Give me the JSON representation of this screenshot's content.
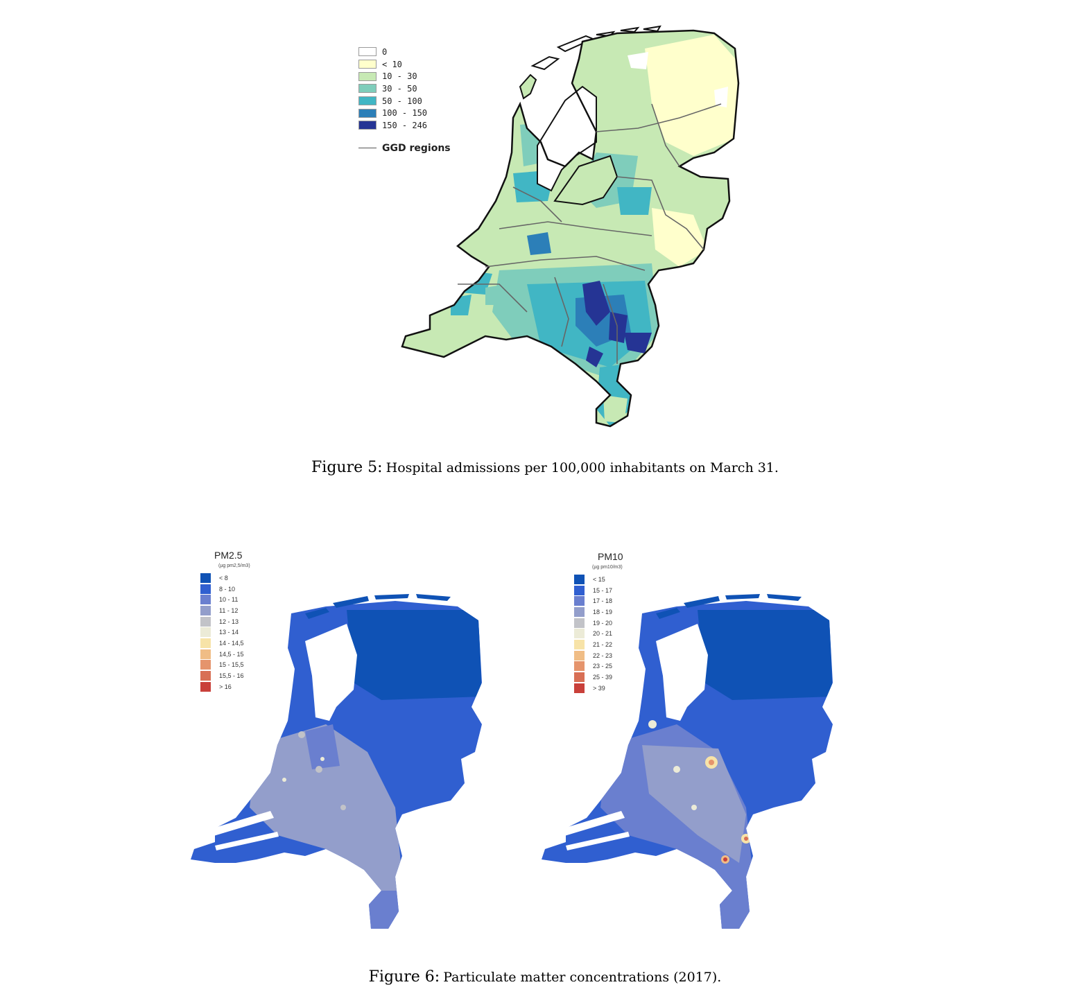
{
  "figure5": {
    "legend": [
      {
        "label": "0",
        "color": "#ffffff"
      },
      {
        "label": "< 10",
        "color": "#ffffcc"
      },
      {
        "label": "10 - 30",
        "color": "#c7e9b4"
      },
      {
        "label": "30 - 50",
        "color": "#7fcdbb"
      },
      {
        "label": "50 - 100",
        "color": "#41b6c4"
      },
      {
        "label": "100 - 150",
        "color": "#2c7fb8"
      },
      {
        "label": "150 - 246",
        "color": "#253494"
      }
    ],
    "ggd_label": "GGD regions",
    "caption_num": "Figure 5:",
    "caption_text": "Hospital admissions per 100,000 inhabitants on March 31."
  },
  "figure6": {
    "pm25": {
      "title": "PM2.5",
      "unit": "(µg pm2,5/m3)",
      "legend": [
        {
          "label": "< 8",
          "color": "#0f52b5"
        },
        {
          "label": "8 - 10",
          "color": "#305fd0"
        },
        {
          "label": "10 - 11",
          "color": "#6a7fcf"
        },
        {
          "label": "11 - 12",
          "color": "#939ecb"
        },
        {
          "label": "12 - 13",
          "color": "#c2c3c8"
        },
        {
          "label": "13 - 14",
          "color": "#ecebd7"
        },
        {
          "label": "14 - 14,5",
          "color": "#f7e3a8"
        },
        {
          "label": "14,5 - 15",
          "color": "#f0bd86"
        },
        {
          "label": "15 - 15,5",
          "color": "#e5946c"
        },
        {
          "label": "15,5 - 16",
          "color": "#d86f55"
        },
        {
          "label": "> 16",
          "color": "#c9403a"
        }
      ]
    },
    "pm10": {
      "title": "PM10",
      "unit": "(µg pm10/m3)",
      "legend": [
        {
          "label": "< 15",
          "color": "#0f52b5"
        },
        {
          "label": "15 - 17",
          "color": "#305fd0"
        },
        {
          "label": "17 - 18",
          "color": "#6a7fcf"
        },
        {
          "label": "18 - 19",
          "color": "#939ecb"
        },
        {
          "label": "19 - 20",
          "color": "#c2c3c8"
        },
        {
          "label": "20 - 21",
          "color": "#ecebd7"
        },
        {
          "label": "21 - 22",
          "color": "#f7e3a8"
        },
        {
          "label": "22 - 23",
          "color": "#f0bd86"
        },
        {
          "label": "23 - 25",
          "color": "#e5946c"
        },
        {
          "label": "25 - 39",
          "color": "#d86f55"
        },
        {
          "label": "> 39",
          "color": "#c9403a"
        }
      ]
    },
    "caption_num": "Figure 6:",
    "caption_text": "Particulate matter concentrations (2017)."
  }
}
